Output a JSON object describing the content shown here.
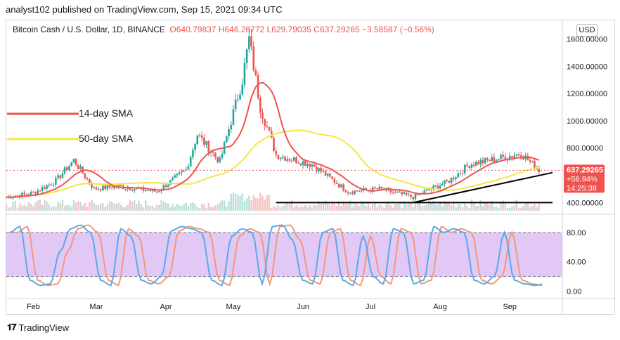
{
  "header": {
    "publisher_line": "analyst102 published on TradingView.com, Sep 15, 2021 09:34 UTC"
  },
  "legend": {
    "symbol": "Bitcoin Cash / U.S. Dollar, 1D, BINANCE",
    "ohlc": "O640.79837 H646.26772 L629.79035 C637.29265 −3.58587 (−0.56%)"
  },
  "currency_button": "USD",
  "footer": {
    "brand": "TradingView"
  },
  "colors": {
    "up": "#26a69a",
    "down": "#ef5350",
    "sma14": "#ef5350",
    "sma50": "#f5e642",
    "stoch_k": "#5aa9e6",
    "stoch_d": "#f0997b",
    "stoch_band": "#e1c8f5",
    "price_label_bg": "#ef5350"
  },
  "chart_data": [
    {
      "type": "candlestick",
      "title": "Bitcoin Cash / U.S. Dollar, 1D, BINANCE",
      "x_labels": [
        "Feb",
        "Mar",
        "Apr",
        "May",
        "Jun",
        "Jul",
        "Aug",
        "Sep"
      ],
      "y_ticks": [
        "400.00000",
        "637.29265",
        "800.00000",
        "1000.00000",
        "1200.00000",
        "1400.00000",
        "1600.00000"
      ],
      "ylim": [
        340,
        1680
      ],
      "last_price": "637.29265",
      "change_pct": "+56.94%",
      "countdown": "14:25:38",
      "approx_close_series": [
        {
          "date": "2021-01-20",
          "close": 440
        },
        {
          "date": "2021-02-01",
          "close": 470
        },
        {
          "date": "2021-02-11",
          "close": 560
        },
        {
          "date": "2021-02-19",
          "close": 710
        },
        {
          "date": "2021-02-28",
          "close": 500
        },
        {
          "date": "2021-03-10",
          "close": 520
        },
        {
          "date": "2021-03-28",
          "close": 480
        },
        {
          "date": "2021-04-10",
          "close": 640
        },
        {
          "date": "2021-04-15",
          "close": 900
        },
        {
          "date": "2021-04-25",
          "close": 700
        },
        {
          "date": "2021-05-05",
          "close": 1300
        },
        {
          "date": "2021-05-08",
          "close": 1600
        },
        {
          "date": "2021-05-13",
          "close": 1100
        },
        {
          "date": "2021-05-20",
          "close": 750
        },
        {
          "date": "2021-06-05",
          "close": 680
        },
        {
          "date": "2021-06-21",
          "close": 480
        },
        {
          "date": "2021-07-05",
          "close": 500
        },
        {
          "date": "2021-07-20",
          "close": 440
        },
        {
          "date": "2021-08-05",
          "close": 560
        },
        {
          "date": "2021-08-14",
          "close": 680
        },
        {
          "date": "2021-09-06",
          "close": 760
        },
        {
          "date": "2021-09-14",
          "close": 637
        }
      ],
      "annotations": [
        {
          "label": "14-day SMA",
          "color": "#ef5350"
        },
        {
          "label": "50-day SMA",
          "color": "#f5e642"
        }
      ],
      "trendlines": [
        {
          "name": "support",
          "points": [
            [
              "2021-05-20",
              400
            ],
            [
              "2021-09-20",
              400
            ]
          ]
        },
        {
          "name": "ascending",
          "points": [
            [
              "2021-07-20",
              400
            ],
            [
              "2021-09-20",
              620
            ]
          ]
        }
      ]
    },
    {
      "type": "line",
      "indicator": "Stochastic",
      "y_ticks": [
        "0.00",
        "40.00",
        "80.00"
      ],
      "ylim": [
        -10,
        100
      ],
      "bands": [
        20,
        80
      ],
      "series": [
        {
          "values_k": [
            80,
            88,
            15,
            8,
            10,
            55,
            85,
            90,
            80,
            15,
            8,
            85,
            75,
            15,
            10,
            20,
            82,
            88,
            85,
            80,
            15,
            8,
            75,
            85,
            80,
            10,
            88,
            90,
            70,
            15,
            10,
            80,
            85,
            15,
            8,
            75,
            20,
            10,
            85,
            80,
            10,
            15,
            88,
            80,
            85,
            80,
            15,
            10,
            20,
            80,
            15,
            10,
            8,
            10
          ]
        }
      ]
    }
  ]
}
